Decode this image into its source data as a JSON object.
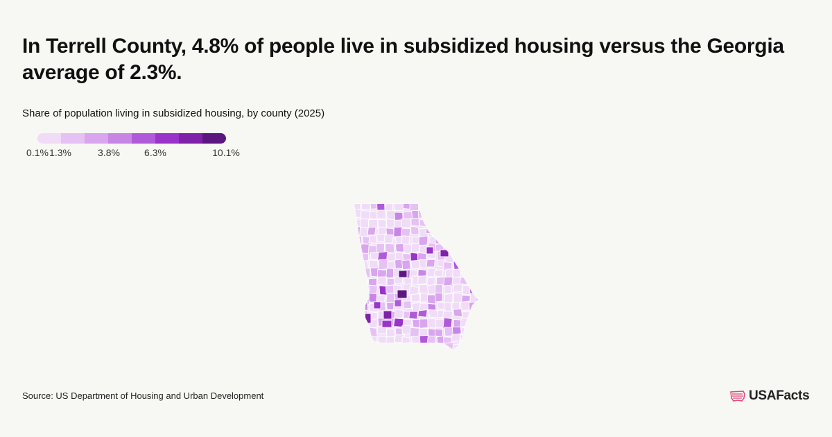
{
  "headline": "In Terrell County, 4.8% of people live in subsidized housing versus the Georgia average of 2.3%.",
  "subtitle": "Share of population living in subsidized housing, by county (2025)",
  "legend": {
    "colors": [
      "#f1dcf8",
      "#e6c1f4",
      "#d8a5ee",
      "#c786e6",
      "#b05ad9",
      "#9a33c9",
      "#7f21a9",
      "#5c1680"
    ],
    "ticks": [
      {
        "label": "0.1%",
        "value": 0.1
      },
      {
        "label": "1.3%",
        "value": 1.3
      },
      {
        "label": "3.8%",
        "value": 3.8
      },
      {
        "label": "6.3%",
        "value": 6.3
      },
      {
        "label": "10.1%",
        "value": 10.1
      }
    ]
  },
  "map": {
    "state": "Georgia",
    "highlight_county": "Terrell County",
    "highlight_value_pct": 4.8,
    "state_average_pct": 2.3
  },
  "source": "Source: US Department of Housing and Urban Development",
  "brand": {
    "name": "USAFacts",
    "color": "#e0457b"
  }
}
